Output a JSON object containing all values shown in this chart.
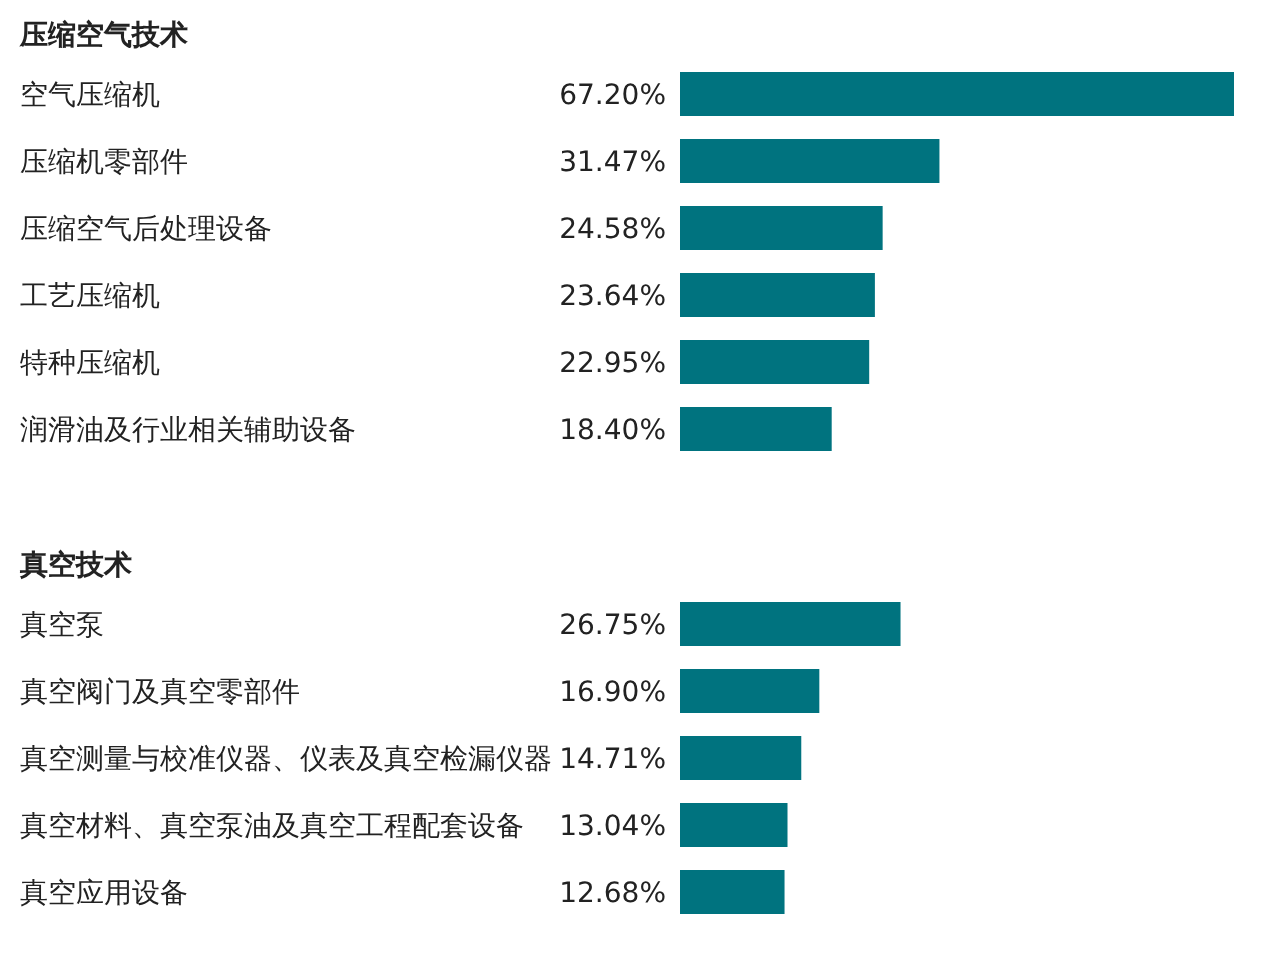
{
  "chart_data": [
    {
      "type": "bar",
      "orientation": "horizontal",
      "title": "压缩空气技术",
      "categories": [
        "空气压缩机",
        "压缩机零部件",
        "压缩空气后处理设备",
        "工艺压缩机",
        "特种压缩机",
        "润滑油及行业相关辅助设备"
      ],
      "values": [
        67.2,
        31.47,
        24.58,
        23.64,
        22.95,
        18.4
      ],
      "value_labels": [
        "67.20%",
        "31.47%",
        "24.58%",
        "23.64%",
        "22.95%",
        "18.40%"
      ],
      "color": "#00737f"
    },
    {
      "type": "bar",
      "orientation": "horizontal",
      "title": "真空技术",
      "categories": [
        "真空泵",
        "真空阀门及真空零部件",
        "真空测量与校准仪器、仪表及真空检漏仪器",
        "真空材料、真空泵油及真空工程配套设备",
        "真空应用设备"
      ],
      "values": [
        26.75,
        16.9,
        14.71,
        13.04,
        12.68
      ],
      "value_labels": [
        "26.75%",
        "16.90%",
        "14.71%",
        "13.04%",
        "12.68%"
      ],
      "color": "#00737f"
    }
  ]
}
